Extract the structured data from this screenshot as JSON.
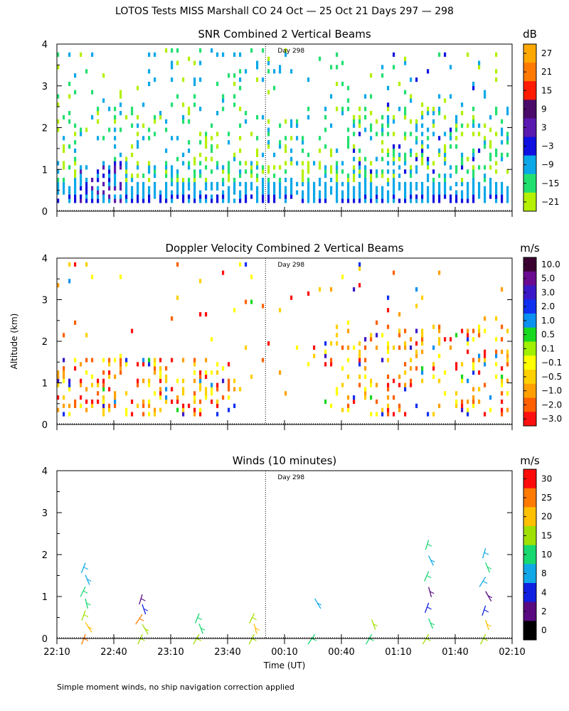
{
  "page": {
    "title": "LOTOS Tests MISS Marshall CO  24 Oct — 25 Oct 21 Days 297 — 298",
    "footnote": "Simple moment winds, no ship navigation correction applied",
    "shared_ylabel": "Altitude (km)"
  },
  "chart_data": [
    {
      "type": "heatmap",
      "id": "snr",
      "title": "SNR Combined 2 Vertical Beams",
      "unit": "dB",
      "ylim": [
        0,
        4
      ],
      "yticks": [
        "0",
        "1",
        "2",
        "3",
        "4"
      ],
      "xlim_minutes": [
        0,
        240
      ],
      "day_marker": {
        "label": "Day 298",
        "at_minutes": 110
      },
      "colorbar": {
        "labels": [
          "27",
          "21",
          "15",
          "9",
          "3",
          "−3",
          "−9",
          "−15",
          "−21"
        ],
        "colors": [
          "#ffa800",
          "#ff7a00",
          "#ff1a00",
          "#4a0a6a",
          "#5a1ab0",
          "#1010e0",
          "#0aa8e8",
          "#22e070",
          "#b4f000"
        ]
      }
    },
    {
      "type": "heatmap",
      "id": "doppler",
      "title": "Doppler Velocity Combined 2 Vertical Beams",
      "unit": "m/s",
      "ylim": [
        0,
        4
      ],
      "yticks": [
        "0",
        "1",
        "2",
        "3",
        "4"
      ],
      "xlim_minutes": [
        0,
        240
      ],
      "day_marker": {
        "label": "Day 298",
        "at_minutes": 110
      },
      "colorbar": {
        "labels": [
          "10.0",
          "5.0",
          "3.0",
          "2.0",
          "1.0",
          "0.5",
          "0.1",
          "−0.1",
          "−0.5",
          "−1.0",
          "−2.0",
          "−3.0"
        ],
        "colors": [
          "#3a0030",
          "#6a0a90",
          "#3a18c8",
          "#1030f0",
          "#0a90f0",
          "#18d820",
          "#a0f000",
          "#ffff00",
          "#ffd000",
          "#ffa000",
          "#ff6000",
          "#ff1010"
        ]
      }
    },
    {
      "type": "wind_profile",
      "id": "winds",
      "title": "Winds (10 minutes)",
      "unit": "m/s",
      "ylim": [
        0,
        4
      ],
      "yticks": [
        "0",
        "1",
        "2",
        "3",
        "4"
      ],
      "xlim_minutes": [
        0,
        240
      ],
      "day_marker": {
        "label": "Day 298",
        "at_minutes": 110
      },
      "colorbar": {
        "labels": [
          "30",
          "25",
          "20",
          "15",
          "10",
          "8",
          "4",
          "2",
          "0"
        ],
        "colors": [
          "#ff0a0a",
          "#ff7a00",
          "#ffc000",
          "#a0e000",
          "#18d870",
          "#12a8e8",
          "#1020e0",
          "#5a0a80",
          "#000000"
        ]
      },
      "xticks": [
        "22:10",
        "22:40",
        "23:10",
        "23:40",
        "00:10",
        "00:40",
        "01:10",
        "01:40",
        "02:10"
      ],
      "xlabel": "Time (UT)",
      "profiles": [
        {
          "t": 15,
          "alt": 1.8,
          "colors": [
            "#ff7a00",
            "#ffc000",
            "#a0e000",
            "#18d870",
            "#18d870",
            "#12a8e8",
            "#12a8e8"
          ]
        },
        {
          "t": 45,
          "alt": 1.05,
          "colors": [
            "#a0e000",
            "#a0e000",
            "#ff7a00",
            "#1020e0",
            "#5a0a80"
          ]
        },
        {
          "t": 75,
          "alt": 0.6,
          "colors": [
            "#a0e000",
            "#18d870",
            "#18d870"
          ]
        },
        {
          "t": 104,
          "alt": 0.6,
          "colors": [
            "#a0e000",
            "#ffc000",
            "#a0e000"
          ]
        },
        {
          "t": 136,
          "alt": 0.95,
          "colors": [
            "#18d870",
            "#12a8e8"
          ]
        },
        {
          "t": 166,
          "alt": 0.45,
          "colors": [
            "#18d870",
            "#a0e000"
          ]
        },
        {
          "t": 196,
          "alt": 2.35,
          "colors": [
            "#a0e000",
            "#18d870",
            "#1020e0",
            "#5a0a80",
            "#18d870",
            "#12a8e8",
            "#18d870"
          ]
        },
        {
          "t": 226,
          "alt": 2.15,
          "colors": [
            "#a0e000",
            "#ffc000",
            "#1020e0",
            "#5a0a80",
            "#12a8e8",
            "#18d870",
            "#12a8e8"
          ]
        }
      ]
    }
  ]
}
